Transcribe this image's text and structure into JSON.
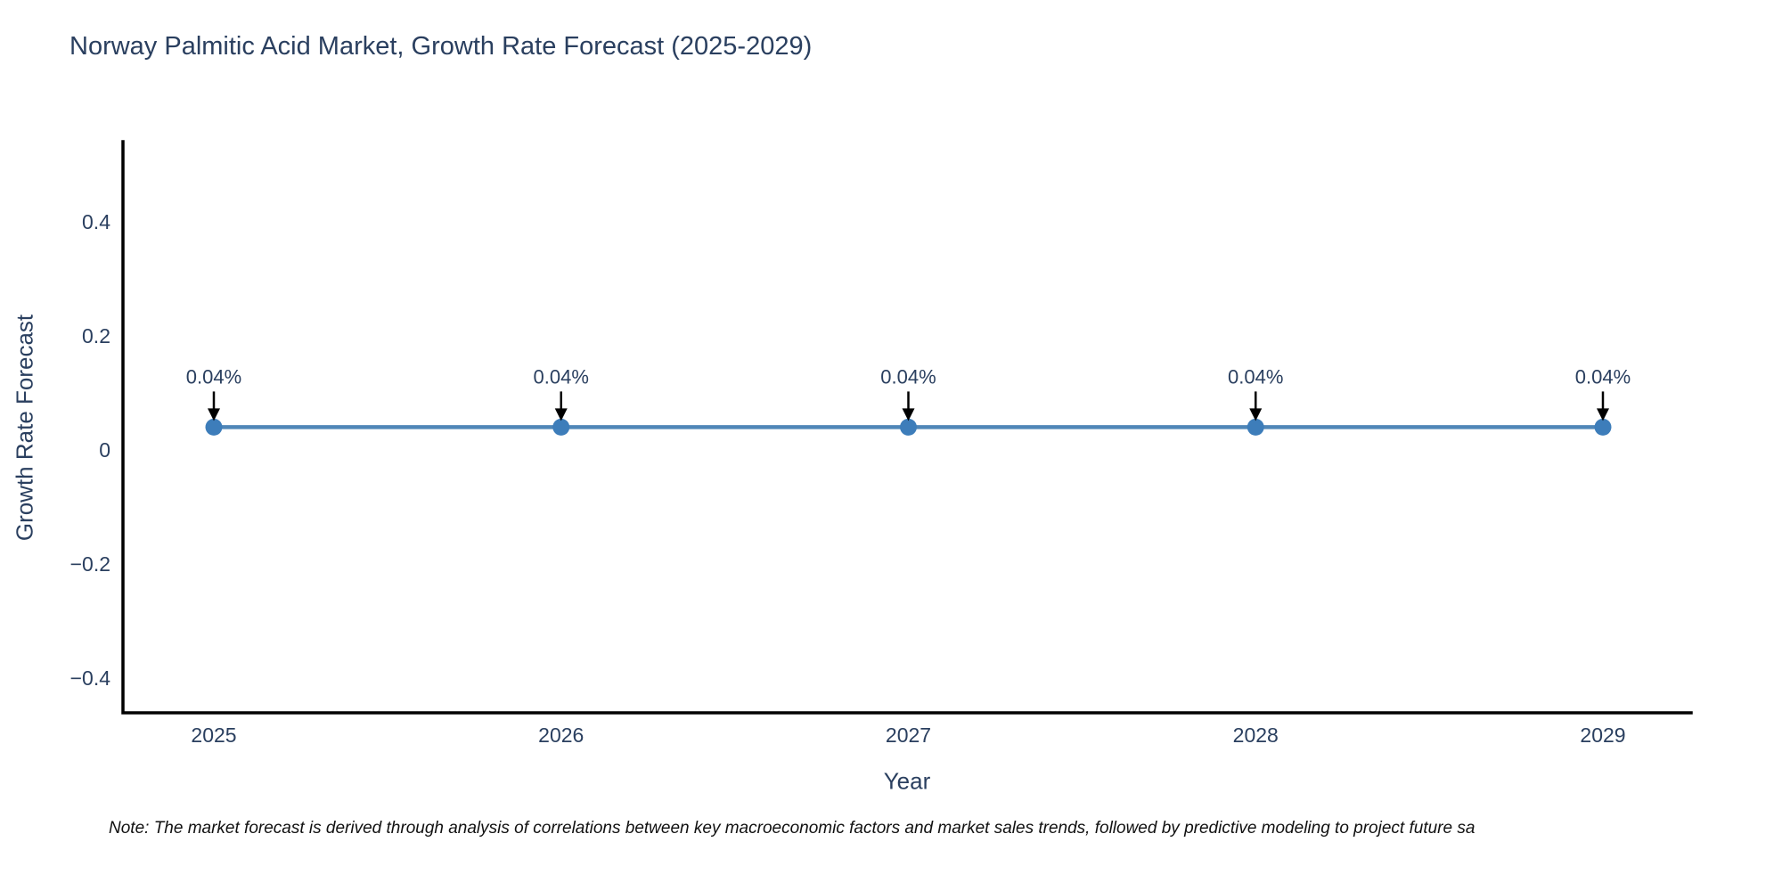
{
  "page": {
    "title": "Norway Palmitic Acid Market, Growth Rate Forecast (2025-2029)",
    "footnote": "Note: The market forecast is derived through analysis of correlations between key macroeconomic factors and market sales trends, followed by predictive modeling to project future sa"
  },
  "chart_data": {
    "type": "line",
    "title": "Norway Palmitic Acid Market, Growth Rate Forecast (2025-2029)",
    "xlabel": "Year",
    "ylabel": "Growth Rate Forecast",
    "x": [
      2025,
      2026,
      2027,
      2028,
      2029
    ],
    "series": [
      {
        "name": "Growth Rate Forecast",
        "values": [
          0.04,
          0.04,
          0.04,
          0.04,
          0.04
        ],
        "point_labels": [
          "0.04%",
          "0.04%",
          "0.04%",
          "0.04%",
          "0.04%"
        ]
      }
    ],
    "yticks": [
      0.4,
      0.2,
      0,
      -0.2,
      -0.4
    ],
    "ytick_labels": [
      "0.4",
      "0.2",
      "0",
      "−0.2",
      "−0.4"
    ],
    "xtick_labels": [
      "2025",
      "2026",
      "2027",
      "2028",
      "2029"
    ],
    "ylim": [
      -0.46,
      0.54
    ],
    "grid": false,
    "legend": "none",
    "annotation_style": "label-with-down-arrow",
    "colors": {
      "line": "#4f86b8",
      "marker": "#3d7dba",
      "axis": "#000000",
      "text": "#2a3f5f",
      "annotation_text": "#2a3f5f",
      "annotation_arrow": "#000000",
      "background": "#ffffff"
    }
  }
}
